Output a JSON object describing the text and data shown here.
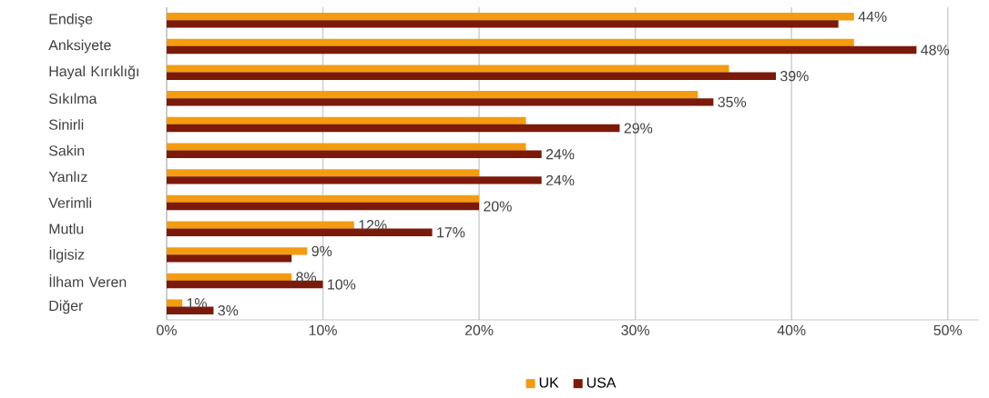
{
  "chart_data": {
    "type": "bar",
    "orientation": "horizontal",
    "categories": [
      "Endişe",
      "Anksiyete",
      "Hayal Kırıklığı",
      "Sıkılma",
      "Sinirli",
      "Sakin",
      "Yanlız",
      "Verimli",
      "Mutlu",
      "İlgisiz",
      "İlham Veren",
      "Diğer"
    ],
    "series": [
      {
        "name": "UK",
        "color": "#f39c12",
        "values": [
          44,
          44,
          36,
          34,
          23,
          23,
          20,
          20,
          12,
          9,
          8,
          1
        ],
        "value_labels": [
          "44%",
          null,
          null,
          null,
          null,
          null,
          null,
          null,
          "12%",
          "9%",
          "8%",
          "1%"
        ]
      },
      {
        "name": "USA",
        "color": "#7b1a0a",
        "values": [
          43,
          48,
          39,
          35,
          29,
          24,
          24,
          20,
          17,
          8,
          10,
          3
        ],
        "value_labels": [
          null,
          "48%",
          "39%",
          "35%",
          "29%",
          "24%",
          "24%",
          "20%",
          "17%",
          null,
          "10%",
          "3%"
        ]
      }
    ],
    "xlim": [
      0,
      52
    ],
    "xticks": [
      {
        "value": 0,
        "label": "0%"
      },
      {
        "value": 10,
        "label": "10%"
      },
      {
        "value": 20,
        "label": "20%"
      },
      {
        "value": 30,
        "label": "30%"
      },
      {
        "value": 40,
        "label": "40%"
      },
      {
        "value": 50,
        "label": "50%"
      }
    ],
    "grid": "x",
    "legend": "bottom"
  }
}
